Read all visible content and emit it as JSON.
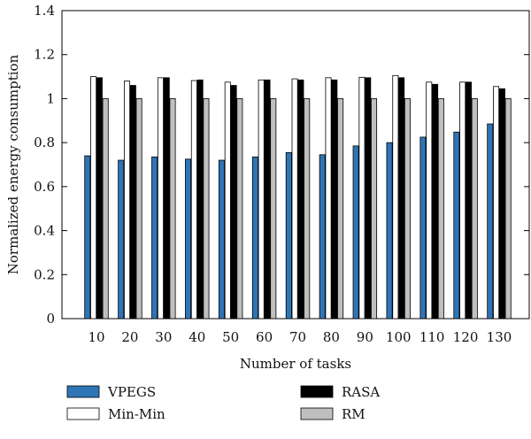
{
  "chart_data": {
    "type": "bar",
    "xlabel": "Number of tasks",
    "ylabel": "Normalized energy consumption",
    "ylim": [
      0,
      1.4
    ],
    "yticks": [
      "0",
      "0.2",
      "0.4",
      "0.6",
      "0.8",
      "1",
      "1.2",
      "1.4"
    ],
    "categories": [
      "10",
      "20",
      "30",
      "40",
      "50",
      "60",
      "70",
      "80",
      "90",
      "100",
      "110",
      "120",
      "130"
    ],
    "series": [
      {
        "name": "VPEGS",
        "color": "#2e75b6",
        "values": [
          0.74,
          0.72,
          0.735,
          0.725,
          0.72,
          0.735,
          0.755,
          0.745,
          0.785,
          0.8,
          0.825,
          0.848,
          0.885
        ]
      },
      {
        "name": "Min-Min",
        "color": "#ffffff",
        "values": [
          1.1,
          1.08,
          1.095,
          1.082,
          1.075,
          1.085,
          1.09,
          1.095,
          1.097,
          1.105,
          1.075,
          1.075,
          1.055
        ]
      },
      {
        "name": "RASA",
        "color": "#000000",
        "values": [
          1.095,
          1.06,
          1.095,
          1.085,
          1.06,
          1.085,
          1.085,
          1.085,
          1.095,
          1.095,
          1.065,
          1.075,
          1.045
        ]
      },
      {
        "name": "RM",
        "color": "#bfbfbf",
        "values": [
          1.0,
          1.0,
          1.0,
          1.0,
          1.0,
          1.0,
          1.0,
          1.0,
          1.0,
          1.0,
          1.0,
          1.0,
          1.0
        ]
      }
    ],
    "legend_position": "bottom",
    "grid": false
  }
}
